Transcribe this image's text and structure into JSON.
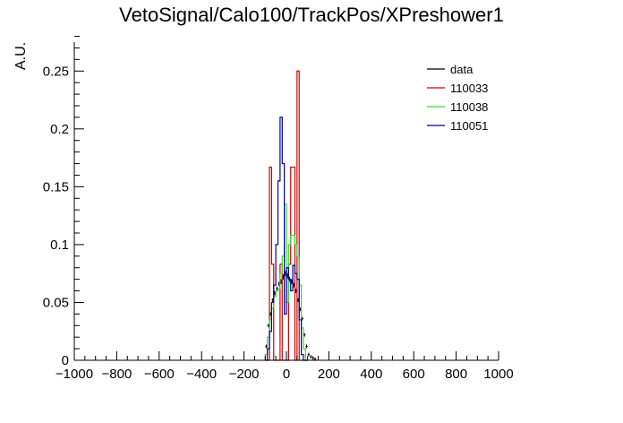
{
  "chart_data": {
    "type": "histogram",
    "title": "VetoSignal/Calo100/TrackPos/XPreshower1",
    "xlabel": "",
    "ylabel": "A.U.",
    "xlim": [
      -1000,
      1000
    ],
    "ylim": [
      0,
      0.275
    ],
    "xticks": [
      -1000,
      -800,
      -600,
      -400,
      -200,
      0,
      200,
      400,
      600,
      800,
      1000
    ],
    "xtick_labels": [
      "−1000",
      "−800",
      "−600",
      "−400",
      "−200",
      "0",
      "200",
      "400",
      "600",
      "800",
      "1000"
    ],
    "yticks": [
      0,
      0.05,
      0.1,
      0.15,
      0.2,
      0.25
    ],
    "ytick_labels": [
      "0",
      "0.05",
      "0.1",
      "0.15",
      "0.2",
      "0.25"
    ],
    "bin_width": 10,
    "legend_position": "top-right",
    "series": [
      {
        "name": "data",
        "color": "#000000",
        "style": "points-with-errors",
        "x": [
          -95,
          -85,
          -75,
          -65,
          -55,
          -45,
          -35,
          -25,
          -15,
          -5,
          5,
          15,
          25,
          35,
          45,
          55,
          65,
          75,
          85,
          95,
          105,
          115,
          125,
          135
        ],
        "y": [
          0.012,
          0.03,
          0.04,
          0.052,
          0.058,
          0.062,
          0.066,
          0.068,
          0.072,
          0.075,
          0.073,
          0.07,
          0.068,
          0.065,
          0.06,
          0.052,
          0.044,
          0.036,
          0.022,
          0.012,
          0.005,
          0.003,
          0.002,
          0.001
        ]
      },
      {
        "name": "110033",
        "color": "#cc0000",
        "style": "step",
        "x": [
          -95,
          -85,
          -75,
          -65,
          -55,
          -45,
          -35,
          -25,
          -15,
          -5,
          5,
          15,
          25,
          35,
          45,
          55,
          65,
          75,
          85,
          95
        ],
        "y": [
          0,
          0.0,
          0.167,
          0.083,
          0,
          0,
          0,
          0.083,
          0,
          0,
          0,
          0.083,
          0.167,
          0.167,
          0,
          0.25,
          0,
          0,
          0,
          0
        ]
      },
      {
        "name": "110038",
        "color": "#33dd33",
        "style": "step",
        "x": [
          -95,
          -85,
          -75,
          -65,
          -55,
          -45,
          -35,
          -25,
          -15,
          -5,
          5,
          15,
          25,
          35,
          45,
          55,
          65,
          75,
          85,
          95
        ],
        "y": [
          0.005,
          0.02,
          0.035,
          0.045,
          0.055,
          0.06,
          0.062,
          0.075,
          0.09,
          0.135,
          0.05,
          0.1,
          0.108,
          0.108,
          0.1,
          0.09,
          0.065,
          0.028,
          0.01,
          0.0
        ]
      },
      {
        "name": "110051",
        "color": "#000099",
        "style": "step",
        "x": [
          -95,
          -85,
          -75,
          -65,
          -55,
          -45,
          -35,
          -25,
          -15,
          -5,
          5,
          15,
          25,
          35,
          45,
          55,
          65,
          75,
          85,
          95
        ],
        "y": [
          0.0,
          0.01,
          0.025,
          0.05,
          0.065,
          0.1,
          0.155,
          0.21,
          0.17,
          0.04,
          0.08,
          0.07,
          0.06,
          0.082,
          0.075,
          0.07,
          0.035,
          0.005,
          0.0,
          0.0
        ]
      }
    ]
  }
}
